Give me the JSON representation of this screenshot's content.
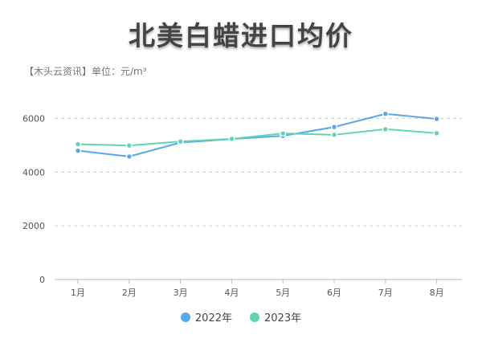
{
  "chart_data": {
    "type": "line",
    "title": "北美白蜡进口均价",
    "subtitle": "【木头云资讯】单位：元/m³",
    "categories": [
      "1月",
      "2月",
      "3月",
      "4月",
      "5月",
      "6月",
      "7月",
      "8月"
    ],
    "ylim": [
      0,
      7000
    ],
    "yticks": [
      0,
      2000,
      4000,
      6000
    ],
    "grid": true,
    "legend_position": "bottom-center",
    "series": [
      {
        "name": "2022年",
        "color": "#5aa8ec",
        "values": [
          4800,
          4580,
          5100,
          5230,
          5350,
          5680,
          6170,
          5980
        ]
      },
      {
        "name": "2023年",
        "color": "#63d4b0",
        "values": [
          5040,
          4990,
          5140,
          5240,
          5440,
          5390,
          5600,
          5450
        ]
      }
    ]
  }
}
